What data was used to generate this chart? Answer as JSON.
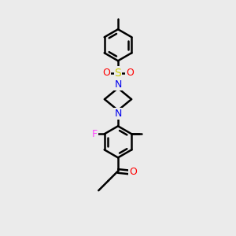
{
  "bg_color": "#ebebeb",
  "bond_color": "#000000",
  "bond_width": 1.8,
  "figsize": [
    3.0,
    3.0
  ],
  "dpi": 100,
  "atom_colors": {
    "N": "#0000ee",
    "O": "#ff0000",
    "S": "#cccc00",
    "F": "#ff44ff",
    "C": "#000000"
  },
  "font_size_atom": 9,
  "font_size_methyl": 8
}
